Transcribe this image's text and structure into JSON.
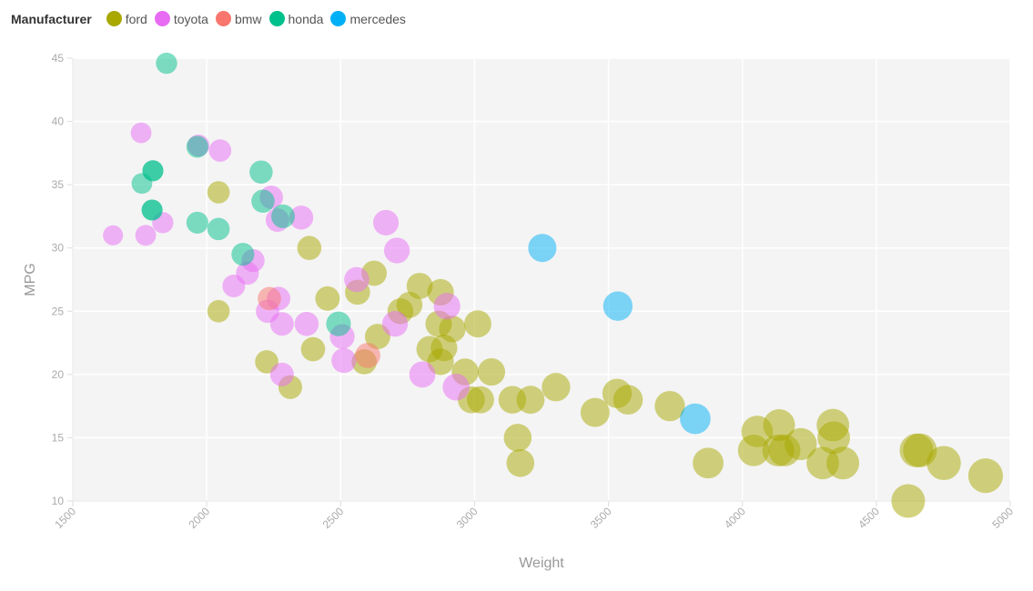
{
  "chart_data": {
    "type": "scatter",
    "xlabel": "Weight",
    "ylabel": "MPG",
    "xlim": [
      1500,
      5000
    ],
    "ylim": [
      10,
      45
    ],
    "xticks": [
      1500,
      2000,
      2500,
      3000,
      3500,
      4000,
      4500,
      5000
    ],
    "yticks": [
      10,
      15,
      20,
      25,
      30,
      35,
      40,
      45
    ],
    "grid": true,
    "size_encoding": "Weight",
    "legend": {
      "title": "Manufacturer",
      "placement": "top-left"
    },
    "series": [
      {
        "name": "ford",
        "color": "#a8a800",
        "points": [
          [
            2044,
            34.4
          ],
          [
            2044,
            25
          ],
          [
            2383,
            30
          ],
          [
            2224,
            21
          ],
          [
            2312,
            19
          ],
          [
            2397,
            22
          ],
          [
            2451,
            26
          ],
          [
            2563,
            26.5
          ],
          [
            2625,
            28
          ],
          [
            2588,
            21
          ],
          [
            2638,
            23
          ],
          [
            2723,
            25
          ],
          [
            2757,
            25.5
          ],
          [
            2795,
            27
          ],
          [
            2873,
            26.5
          ],
          [
            2832,
            22
          ],
          [
            2866,
            24
          ],
          [
            2917,
            23.6
          ],
          [
            2886,
            22.1
          ],
          [
            2873,
            21
          ],
          [
            2965,
            20.2
          ],
          [
            2988,
            18
          ],
          [
            3012,
            24
          ],
          [
            3022,
            18
          ],
          [
            3063,
            20.2
          ],
          [
            3141,
            18
          ],
          [
            3161,
            15
          ],
          [
            3171,
            13
          ],
          [
            3209,
            18
          ],
          [
            3304,
            19
          ],
          [
            3450,
            17
          ],
          [
            3532,
            18.5
          ],
          [
            3573,
            18
          ],
          [
            3729,
            17.5
          ],
          [
            3872,
            13
          ],
          [
            4042,
            14
          ],
          [
            4055,
            15.5
          ],
          [
            4137,
            16
          ],
          [
            4134,
            14
          ],
          [
            4157,
            14
          ],
          [
            4218,
            14.5
          ],
          [
            4300,
            13
          ],
          [
            4338,
            16
          ],
          [
            4341,
            15
          ],
          [
            4375,
            13
          ],
          [
            4619,
            10
          ],
          [
            4650,
            14
          ],
          [
            4663,
            14
          ],
          [
            4752,
            13
          ],
          [
            4908,
            12
          ]
        ]
      },
      {
        "name": "toyota",
        "color": "#e76bf3",
        "points": [
          [
            1650,
            31
          ],
          [
            1755,
            39.1
          ],
          [
            1772,
            31
          ],
          [
            1836,
            32
          ],
          [
            1969,
            38.1
          ],
          [
            2050,
            37.7
          ],
          [
            2241,
            34
          ],
          [
            2264,
            32.2
          ],
          [
            2353,
            32.4
          ],
          [
            2173,
            29
          ],
          [
            2152,
            28
          ],
          [
            2101,
            27
          ],
          [
            2227,
            25
          ],
          [
            2268,
            26
          ],
          [
            2281,
            24
          ],
          [
            2373,
            24
          ],
          [
            2281,
            20
          ],
          [
            2506,
            23
          ],
          [
            2512,
            21.1
          ],
          [
            2669,
            32
          ],
          [
            2710,
            29.8
          ],
          [
            2560,
            27.5
          ],
          [
            2703,
            24
          ],
          [
            2805,
            20
          ],
          [
            2897,
            25.4
          ],
          [
            2931,
            19
          ]
        ]
      },
      {
        "name": "bmw",
        "color": "#f8766d",
        "points": [
          [
            2234,
            26
          ],
          [
            2601,
            21.5
          ]
        ]
      },
      {
        "name": "honda",
        "color": "#00c08b",
        "points": [
          [
            1850,
            44.6
          ],
          [
            1758,
            35.1
          ],
          [
            1799,
            36.1
          ],
          [
            1799,
            36.1
          ],
          [
            1796,
            33
          ],
          [
            1796,
            33
          ],
          [
            1965,
            32
          ],
          [
            2044,
            31.5
          ],
          [
            1965,
            38
          ],
          [
            2203,
            36
          ],
          [
            2210,
            33.7
          ],
          [
            2285,
            32.5
          ],
          [
            2135,
            29.5
          ],
          [
            2492,
            24
          ]
        ]
      },
      {
        "name": "mercedes",
        "color": "#00b0f6",
        "points": [
          [
            3253,
            30
          ],
          [
            3535,
            25.4
          ],
          [
            3824,
            16.5
          ]
        ]
      }
    ]
  }
}
